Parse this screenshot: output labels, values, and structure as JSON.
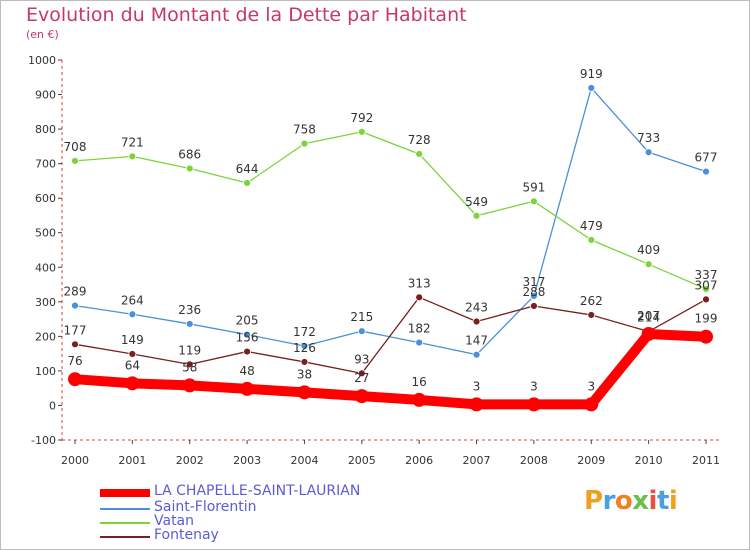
{
  "title": "Evolution du Montant de la Dette par Habitant",
  "subtitle": "(en €)",
  "logo_text": "Proxiti",
  "chart_data": {
    "type": "line",
    "title": "Evolution du Montant de la Dette par Habitant",
    "subtitle": "(en €)",
    "xlabel": "",
    "ylabel": "",
    "categories": [
      "2000",
      "2001",
      "2002",
      "2003",
      "2004",
      "2005",
      "2006",
      "2007",
      "2008",
      "2009",
      "2010",
      "2011"
    ],
    "ylim": [
      -100,
      1000
    ],
    "yticks": [
      -100,
      0,
      100,
      200,
      300,
      400,
      500,
      600,
      700,
      800,
      900,
      1000
    ],
    "grid": false,
    "legend_position": "bottom-left",
    "series": [
      {
        "name": "LA CHAPELLE-SAINT-LAURIAN",
        "color": "#ff0000",
        "values": [
          76,
          64,
          58,
          48,
          38,
          27,
          16,
          3,
          3,
          3,
          207,
          199
        ]
      },
      {
        "name": "Saint-Florentin",
        "color": "#4a90d9",
        "values": [
          289,
          264,
          236,
          205,
          172,
          215,
          182,
          147,
          317,
          919,
          733,
          677
        ]
      },
      {
        "name": "Vatan",
        "color": "#7ed33a",
        "values": [
          708,
          721,
          686,
          644,
          758,
          792,
          728,
          549,
          591,
          479,
          409,
          337
        ]
      },
      {
        "name": "Fontenay",
        "color": "#7a1e1e",
        "values": [
          177,
          149,
          119,
          156,
          126,
          93,
          313,
          243,
          288,
          262,
          214,
          307
        ]
      }
    ]
  }
}
